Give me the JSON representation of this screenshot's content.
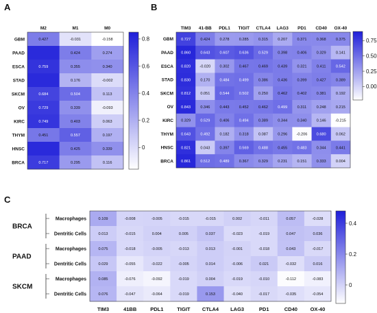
{
  "chart_data": [
    {
      "type": "heatmap",
      "panel": "A",
      "columns": [
        "M2",
        "M1",
        "M0"
      ],
      "rows": [
        "GBM",
        "PAAD",
        "ESCA",
        "STAD",
        "SKCM",
        "OV",
        "KIRC",
        "THYM",
        "HNSC",
        "BRCA"
      ],
      "values": [
        [
          0.427,
          -0.031,
          -0.158
        ],
        [
          0.8,
          0.424,
          0.274
        ],
        [
          0.759,
          0.355,
          0.34
        ],
        [
          0.8,
          0.176,
          -0.002
        ],
        [
          0.684,
          0.504,
          0.113
        ],
        [
          0.729,
          0.339,
          -0.093
        ],
        [
          0.749,
          0.403,
          0.063
        ],
        [
          0.451,
          0.557,
          0.197
        ],
        [
          0.8,
          0.425,
          0.339
        ],
        [
          0.717,
          0.295,
          0.116
        ]
      ],
      "value_labels": [
        [
          "0.427",
          "-0.031",
          "-0.158"
        ],
        [
          "",
          "0.424",
          "0.274"
        ],
        [
          "0.759",
          "0.355",
          "0.340"
        ],
        [
          "",
          "0.176",
          "-0.002"
        ],
        [
          "0.684",
          "0.504",
          "0.113"
        ],
        [
          "0.729",
          "0.339",
          "-0.093"
        ],
        [
          "0.749",
          "0.403",
          "0.063"
        ],
        [
          "0.451",
          "0.557",
          "0.197"
        ],
        [
          "",
          "0.425",
          "0.339"
        ],
        [
          "0.717",
          "0.295",
          "0.116"
        ]
      ],
      "colorbar_ticks": [
        "0.8",
        "0.6",
        "0.4",
        "0.2",
        "0"
      ],
      "colorbar_tick_values": [
        0.8,
        0.6,
        0.4,
        0.2,
        0
      ],
      "color_range": [
        -0.16,
        0.85
      ],
      "color_low": "#ffffff",
      "color_high": "#1f1fd9"
    },
    {
      "type": "heatmap",
      "panel": "B",
      "columns": [
        "TIM3",
        "41-BB",
        "PDL1",
        "TIGIT",
        "CTLA4",
        "LAG3",
        "PD1",
        "CD40",
        "OX-40"
      ],
      "rows": [
        "GBM",
        "PAAD",
        "ESCA",
        "STAD",
        "SKCM",
        "OV",
        "KIRC",
        "THYM",
        "HNSC",
        "BRCA"
      ],
      "values": [
        [
          0.727,
          0.424,
          0.278,
          0.285,
          0.315,
          0.207,
          0.371,
          0.368,
          0.375
        ],
        [
          0.86,
          0.643,
          0.607,
          0.636,
          0.529,
          0.398,
          0.406,
          0.329,
          0.141
        ],
        [
          0.82,
          -0.02,
          0.302,
          0.467,
          0.469,
          0.439,
          0.321,
          0.411,
          0.542
        ],
        [
          0.83,
          0.17,
          0.484,
          0.499,
          0.386,
          0.436,
          0.399,
          0.427,
          0.389
        ],
        [
          0.812,
          0.051,
          0.544,
          0.502,
          0.25,
          0.462,
          0.402,
          0.381,
          0.192
        ],
        [
          0.843,
          0.346,
          0.443,
          0.452,
          0.462,
          0.499,
          0.311,
          0.248,
          0.215
        ],
        [
          0.329,
          0.529,
          0.406,
          0.494,
          0.389,
          0.344,
          0.34,
          0.146,
          -0.215
        ],
        [
          0.643,
          0.492,
          0.182,
          0.318,
          0.087,
          0.296,
          -0.206,
          0.68,
          0.062
        ],
        [
          0.821,
          0.043,
          0.397,
          0.569,
          0.488,
          0.455,
          0.483,
          0.344,
          0.441
        ],
        [
          0.861,
          0.512,
          0.489,
          0.367,
          0.329,
          0.231,
          0.151,
          0.333,
          0.004
        ]
      ],
      "value_labels": [
        [
          "0.727",
          "0.424",
          "0.278",
          "0.285",
          "0.315",
          "0.207",
          "0.371",
          "0.368",
          "0.375"
        ],
        [
          "0.860",
          "0.643",
          "0.607",
          "0.636",
          "0.529",
          "0.398",
          "0.406",
          "0.329",
          "0.141"
        ],
        [
          "0.820",
          "-0.020",
          "0.302",
          "0.467",
          "0.469",
          "0.439",
          "0.321",
          "0.411",
          "0.542"
        ],
        [
          "0.830",
          "0.170",
          "0.484",
          "0.499",
          "0.386",
          "0.436",
          "0.399",
          "0.427",
          "0.389"
        ],
        [
          "0.812",
          "0.051",
          "0.544",
          "0.502",
          "0.250",
          "0.462",
          "0.402",
          "0.381",
          "0.192"
        ],
        [
          "0.843",
          "0.346",
          "0.443",
          "0.452",
          "0.462",
          "0.499",
          "0.311",
          "0.248",
          "0.215"
        ],
        [
          "0.329",
          "0.529",
          "0.406",
          "0.494",
          "0.389",
          "0.344",
          "0.340",
          "0.146",
          "-0.215"
        ],
        [
          "0.643",
          "0.492",
          "0.182",
          "0.318",
          "0.087",
          "0.296",
          "-0.206",
          "0.680",
          "0.062"
        ],
        [
          "0.821",
          "0.043",
          "0.397",
          "0.569",
          "0.488",
          "0.455",
          "0.483",
          "0.344",
          "0.441"
        ],
        [
          "0.861",
          "0.512",
          "0.489",
          "0.367",
          "0.329",
          "0.231",
          "0.151",
          "0.333",
          "0.004"
        ]
      ],
      "colorbar_ticks": [
        "0.75",
        "0.50",
        "0.25",
        "0.00"
      ],
      "colorbar_tick_values": [
        0.75,
        0.5,
        0.25,
        0.0
      ],
      "color_range": [
        -0.22,
        0.9
      ],
      "color_low": "#ffffff",
      "color_high": "#1f1fd9"
    },
    {
      "type": "heatmap",
      "panel": "C",
      "columns": [
        "TIM3",
        "41BB",
        "PDL1",
        "TIGIT",
        "CTLA4",
        "LAG3",
        "PD1",
        "CD40",
        "OX-40"
      ],
      "groups": [
        {
          "name": "BRCA",
          "rows": [
            "Macrophages",
            "Dentritic Cells"
          ]
        },
        {
          "name": "PAAD",
          "rows": [
            "Macrophages",
            "Dentritic Cells"
          ]
        },
        {
          "name": "SKCM",
          "rows": [
            "Macrophages",
            "Dentritic Cells"
          ]
        }
      ],
      "values": [
        [
          0.109,
          -0.008,
          -0.005,
          -0.015,
          -0.015,
          0.002,
          -0.011,
          0.057,
          -0.028
        ],
        [
          0.013,
          -0.015,
          0.004,
          0.005,
          0.037,
          -0.023,
          -0.019,
          0.047,
          0.036
        ],
        [
          0.075,
          -0.018,
          -0.005,
          -0.013,
          0.013,
          -0.001,
          -0.018,
          0.043,
          -0.017
        ],
        [
          0.029,
          -0.055,
          -0.022,
          -0.005,
          0.014,
          -0.006,
          0.021,
          -0.032,
          0.016
        ],
        [
          0.085,
          -0.076,
          -0.092,
          -0.019,
          0.004,
          -0.019,
          -0.01,
          -0.112,
          -0.083
        ],
        [
          0.076,
          -0.047,
          -0.064,
          -0.019,
          0.153,
          -0.04,
          -0.017,
          -0.035,
          -0.054
        ]
      ],
      "value_labels": [
        [
          "0.109",
          "-0.008",
          "-0.005",
          "-0.015",
          "-0.015",
          "0.002",
          "-0.011",
          "0.057",
          "-0.028"
        ],
        [
          "0.013",
          "-0.015",
          "0.004",
          "0.005",
          "0.037",
          "-0.023",
          "-0.019",
          "0.047",
          "0.036"
        ],
        [
          "0.075",
          "-0.018",
          "-0.005",
          "-0.013",
          "0.013",
          "-0.001",
          "-0.018",
          "0.043",
          "-0.017"
        ],
        [
          "0.029",
          "-0.055",
          "-0.022",
          "-0.005",
          "0.014",
          "-0.006",
          "0.021",
          "-0.032",
          "0.016"
        ],
        [
          "0.085",
          "-0.076",
          "-0.092",
          "-0.019",
          "0.004",
          "-0.019",
          "-0.010",
          "-0.112",
          "-0.083"
        ],
        [
          "0.076",
          "-0.047",
          "-0.064",
          "-0.019",
          "0.153",
          "-0.040",
          "-0.017",
          "-0.035",
          "-0.054"
        ]
      ],
      "colorbar_ticks": [
        "0.4",
        "0.2",
        "0"
      ],
      "colorbar_tick_values": [
        0.4,
        0.2,
        0
      ],
      "color_range": [
        -0.12,
        0.48
      ],
      "color_low": "#ffffff",
      "color_high": "#1f1fd9"
    }
  ]
}
